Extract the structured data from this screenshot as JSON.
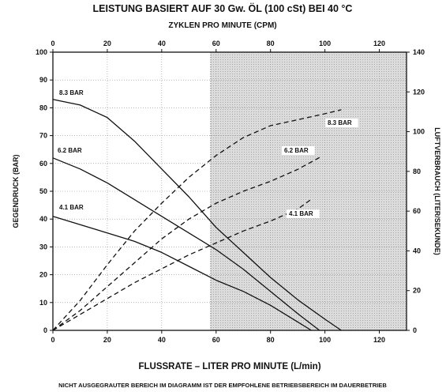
{
  "chart_data": {
    "type": "line",
    "title": "LEISTUNG BASIERT AUF 30 Gw. ÖL (100 cSt) BEI 40 °C",
    "top_xlabel": "ZYKLEN PRO MINUTE (CPM)",
    "xlabel": "FLUSSRATE – LITER PRO MINUTE (L/min)",
    "ylabel": "GEGENDRUCK (BAR)",
    "y2label": "LUFTVERBRAUCH (LITER/SEKUNDE)",
    "footnote": "NICHT AUSGEGRAUTER BEREICH IM DIAGRAMM IST DER EMPFOHLENE BETRIEBSBEREICH IM DAUERBETRIEB",
    "xlim": [
      0,
      130
    ],
    "ylim": [
      0,
      100
    ],
    "top_xlim": [
      0,
      130
    ],
    "y2lim": [
      0,
      140
    ],
    "x_ticks": [
      0,
      20,
      40,
      60,
      80,
      100,
      120
    ],
    "top_x_ticks": [
      0,
      20,
      40,
      60,
      80,
      100,
      120
    ],
    "y_ticks": [
      0,
      10,
      20,
      30,
      40,
      50,
      60,
      70,
      80,
      90,
      100
    ],
    "y2_ticks": [
      0,
      20,
      40,
      60,
      80,
      100,
      120,
      140
    ],
    "grid": true,
    "shaded_region": {
      "x_from": 58,
      "x_to": 130,
      "color": "#d0d0d0"
    },
    "series": [
      {
        "name": "8.3 BAR",
        "style": "solid",
        "axis": "left",
        "x": [
          0,
          10,
          20,
          30,
          40,
          50,
          60,
          70,
          80,
          90,
          100,
          106
        ],
        "y": [
          83,
          81,
          76.5,
          68,
          58,
          48,
          37,
          28,
          19,
          11,
          4,
          0
        ]
      },
      {
        "name": "6.2 BAR",
        "style": "solid",
        "axis": "left",
        "x": [
          0,
          10,
          20,
          30,
          40,
          50,
          60,
          70,
          80,
          90,
          98
        ],
        "y": [
          62,
          58,
          53,
          47,
          41,
          35,
          29,
          22,
          14,
          6,
          0
        ]
      },
      {
        "name": "4.1 BAR",
        "style": "solid",
        "axis": "left",
        "x": [
          0,
          10,
          20,
          30,
          40,
          50,
          60,
          70,
          80,
          90,
          95
        ],
        "y": [
          41,
          38,
          35,
          32,
          28,
          23,
          18,
          14,
          9,
          3,
          0
        ]
      },
      {
        "name": "8.3 BAR",
        "style": "dashed",
        "axis": "right",
        "x": [
          0,
          10,
          20,
          30,
          40,
          50,
          60,
          70,
          80,
          90,
          100,
          106
        ],
        "y": [
          0,
          15,
          33,
          50,
          64,
          77,
          88,
          97,
          103,
          106,
          109,
          111
        ]
      },
      {
        "name": "6.2 BAR",
        "style": "dashed",
        "axis": "right",
        "x": [
          0,
          10,
          20,
          30,
          40,
          50,
          60,
          70,
          80,
          90,
          98
        ],
        "y": [
          0,
          10,
          22,
          34,
          46,
          56,
          64,
          70,
          75,
          81,
          87
        ]
      },
      {
        "name": "4.1 BAR",
        "style": "dashed",
        "axis": "right",
        "x": [
          0,
          10,
          20,
          30,
          40,
          50,
          60,
          70,
          80,
          90,
          95
        ],
        "y": [
          0,
          8,
          16,
          24,
          31,
          38,
          44,
          50,
          55,
          61,
          66
        ]
      }
    ],
    "annotations": [
      "8.3 BAR",
      "6.2 BAR",
      "4.1 BAR",
      "8.3 BAR",
      "6.2 BAR",
      "4.1 BAR"
    ]
  }
}
